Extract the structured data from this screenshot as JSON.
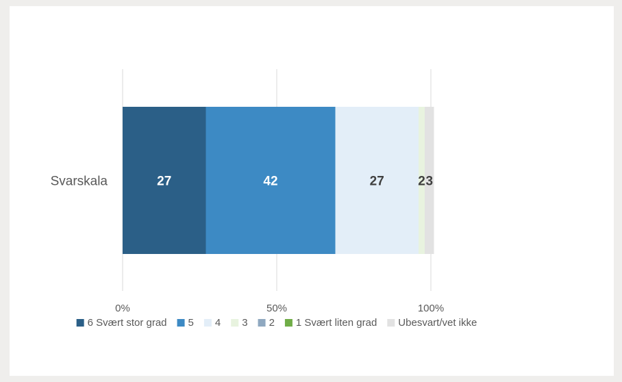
{
  "chart_data": {
    "type": "bar",
    "orientation": "horizontal",
    "stacked": true,
    "categories": [
      "Svarskala"
    ],
    "series": [
      {
        "name": "6 Svært stor grad",
        "values": [
          27
        ],
        "color": "#2b5f87",
        "label_color": "#ffffff"
      },
      {
        "name": "5",
        "values": [
          42
        ],
        "color": "#3d8ac4",
        "label_color": "#ffffff"
      },
      {
        "name": "4",
        "values": [
          27
        ],
        "color": "#e3eef8",
        "label_color": "#404040"
      },
      {
        "name": "3",
        "values": [
          2
        ],
        "color": "#e8f3df",
        "label_color": "#404040"
      },
      {
        "name": "2",
        "values": [
          0
        ],
        "color": "#8fa8c0",
        "label_color": "#404040"
      },
      {
        "name": "1 Svært liten grad",
        "values": [
          0
        ],
        "color": "#70ad47",
        "label_color": "#404040"
      },
      {
        "name": "Ubesvart/vet ikke",
        "values": [
          3
        ],
        "color": "#e2e2e2",
        "label_color": "#404040"
      }
    ],
    "xlim": [
      0,
      100
    ],
    "xticks": [
      "0%",
      "50%",
      "100%"
    ],
    "grid": true,
    "legend_position": "bottom",
    "title": "",
    "xlabel": "",
    "ylabel": ""
  }
}
